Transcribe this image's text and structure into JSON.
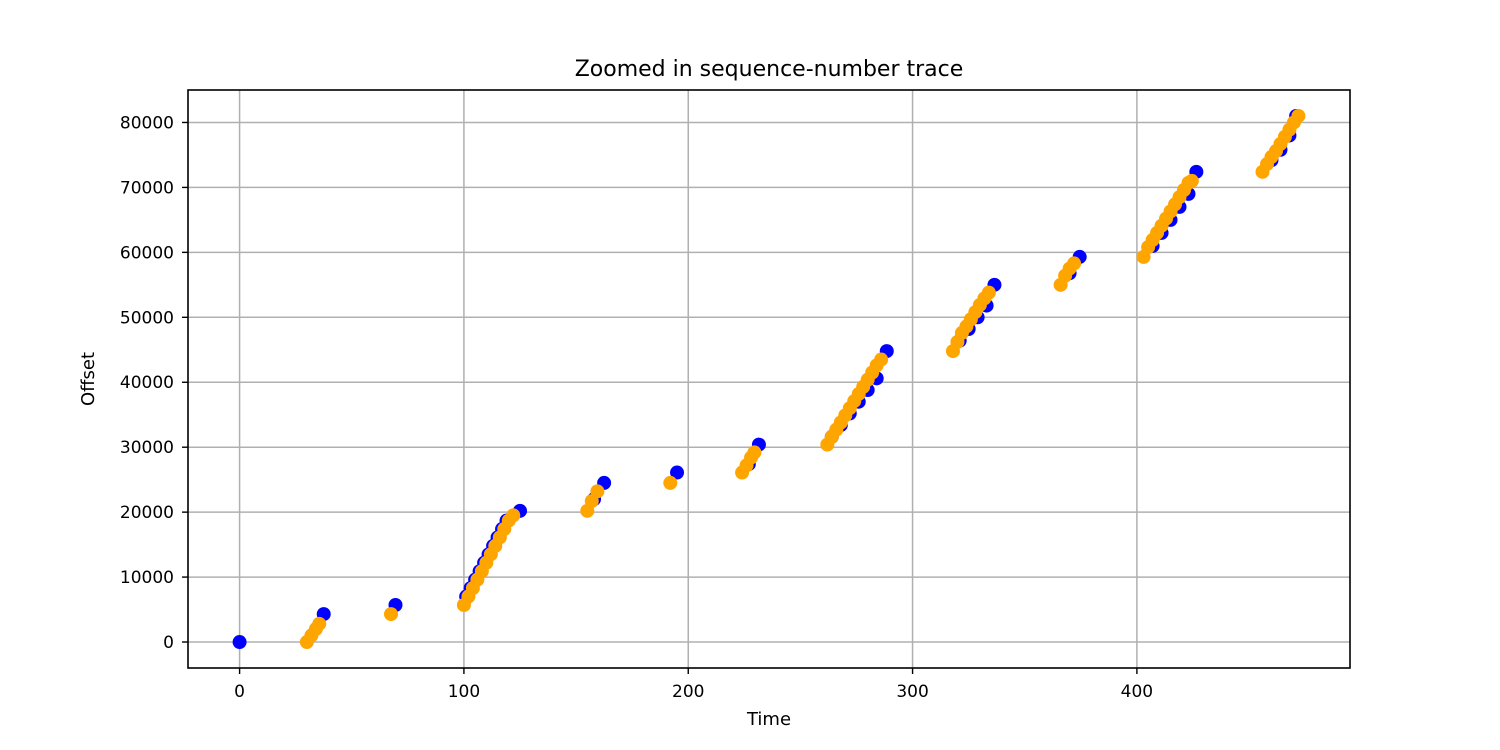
{
  "chart_data": {
    "type": "scatter",
    "title": "Zoomed in sequence-number trace",
    "xlabel": "Time",
    "ylabel": "Offset",
    "xlim": [
      -23,
      495
    ],
    "ylim": [
      -4000,
      85000
    ],
    "xticks": [
      0,
      100,
      200,
      300,
      400
    ],
    "yticks": [
      0,
      10000,
      20000,
      30000,
      40000,
      50000,
      60000,
      70000,
      80000
    ],
    "grid": true,
    "series": [
      {
        "color": "#0000ff",
        "points": [
          [
            0,
            0
          ],
          [
            37.5,
            4300
          ],
          [
            69.5,
            5700
          ],
          [
            101,
            7000
          ],
          [
            103,
            8300
          ],
          [
            105,
            9600
          ],
          [
            107,
            10900
          ],
          [
            109,
            12200
          ],
          [
            111,
            13500
          ],
          [
            113,
            14800
          ],
          [
            115,
            16100
          ],
          [
            117,
            17400
          ],
          [
            119,
            18700
          ],
          [
            125,
            20200
          ],
          [
            158,
            22000
          ],
          [
            162.5,
            24500
          ],
          [
            195,
            26100
          ],
          [
            227,
            27400
          ],
          [
            231.5,
            30400
          ],
          [
            264,
            31600
          ],
          [
            268,
            33400
          ],
          [
            272,
            35200
          ],
          [
            276,
            37000
          ],
          [
            280,
            38800
          ],
          [
            284,
            40600
          ],
          [
            288.5,
            44800
          ],
          [
            321,
            46400
          ],
          [
            325,
            48200
          ],
          [
            329,
            50000
          ],
          [
            333,
            51800
          ],
          [
            336.5,
            55000
          ],
          [
            370,
            56800
          ],
          [
            374.5,
            59300
          ],
          [
            407,
            61000
          ],
          [
            411,
            63000
          ],
          [
            415,
            65000
          ],
          [
            419,
            67000
          ],
          [
            423,
            69000
          ],
          [
            426.5,
            72400
          ],
          [
            460,
            74200
          ],
          [
            464,
            75800
          ],
          [
            468,
            78000
          ],
          [
            471,
            81000
          ]
        ]
      },
      {
        "color": "#ffa500",
        "points": [
          [
            30,
            0
          ],
          [
            32,
            1000
          ],
          [
            34,
            2000
          ],
          [
            35.5,
            2800
          ],
          [
            67.5,
            4300
          ],
          [
            100,
            5700
          ],
          [
            102,
            7000
          ],
          [
            104,
            8300
          ],
          [
            106,
            9600
          ],
          [
            108,
            10900
          ],
          [
            110,
            12200
          ],
          [
            112,
            13500
          ],
          [
            114,
            14800
          ],
          [
            116,
            16100
          ],
          [
            118,
            17400
          ],
          [
            120,
            18700
          ],
          [
            122,
            19500
          ],
          [
            155,
            20200
          ],
          [
            157,
            21700
          ],
          [
            159.5,
            23200
          ],
          [
            192,
            24500
          ],
          [
            224,
            26100
          ],
          [
            226,
            27200
          ],
          [
            228,
            28400
          ],
          [
            229.5,
            29200
          ],
          [
            262,
            30400
          ],
          [
            264,
            31600
          ],
          [
            266,
            32700
          ],
          [
            268,
            33800
          ],
          [
            270,
            34900
          ],
          [
            272,
            36000
          ],
          [
            274,
            37100
          ],
          [
            276,
            38200
          ],
          [
            278,
            39300
          ],
          [
            280,
            40400
          ],
          [
            282,
            41500
          ],
          [
            284,
            42600
          ],
          [
            286,
            43500
          ],
          [
            318,
            44800
          ],
          [
            320,
            46200
          ],
          [
            322,
            47600
          ],
          [
            324,
            48600
          ],
          [
            326,
            49700
          ],
          [
            328,
            50800
          ],
          [
            330,
            51900
          ],
          [
            332,
            52900
          ],
          [
            334,
            53800
          ],
          [
            366,
            55000
          ],
          [
            368,
            56400
          ],
          [
            370,
            57500
          ],
          [
            372,
            58300
          ],
          [
            403,
            59300
          ],
          [
            405,
            60800
          ],
          [
            407,
            61900
          ],
          [
            409,
            63000
          ],
          [
            411,
            64100
          ],
          [
            413,
            65200
          ],
          [
            415,
            66300
          ],
          [
            417,
            67400
          ],
          [
            419,
            68500
          ],
          [
            421,
            69600
          ],
          [
            423,
            70700
          ],
          [
            424.5,
            71000
          ],
          [
            456,
            72400
          ],
          [
            458,
            73600
          ],
          [
            460,
            74700
          ],
          [
            462,
            75600
          ],
          [
            464,
            76700
          ],
          [
            466,
            77800
          ],
          [
            468,
            78900
          ],
          [
            470,
            80000
          ],
          [
            472,
            81000
          ]
        ]
      }
    ]
  }
}
